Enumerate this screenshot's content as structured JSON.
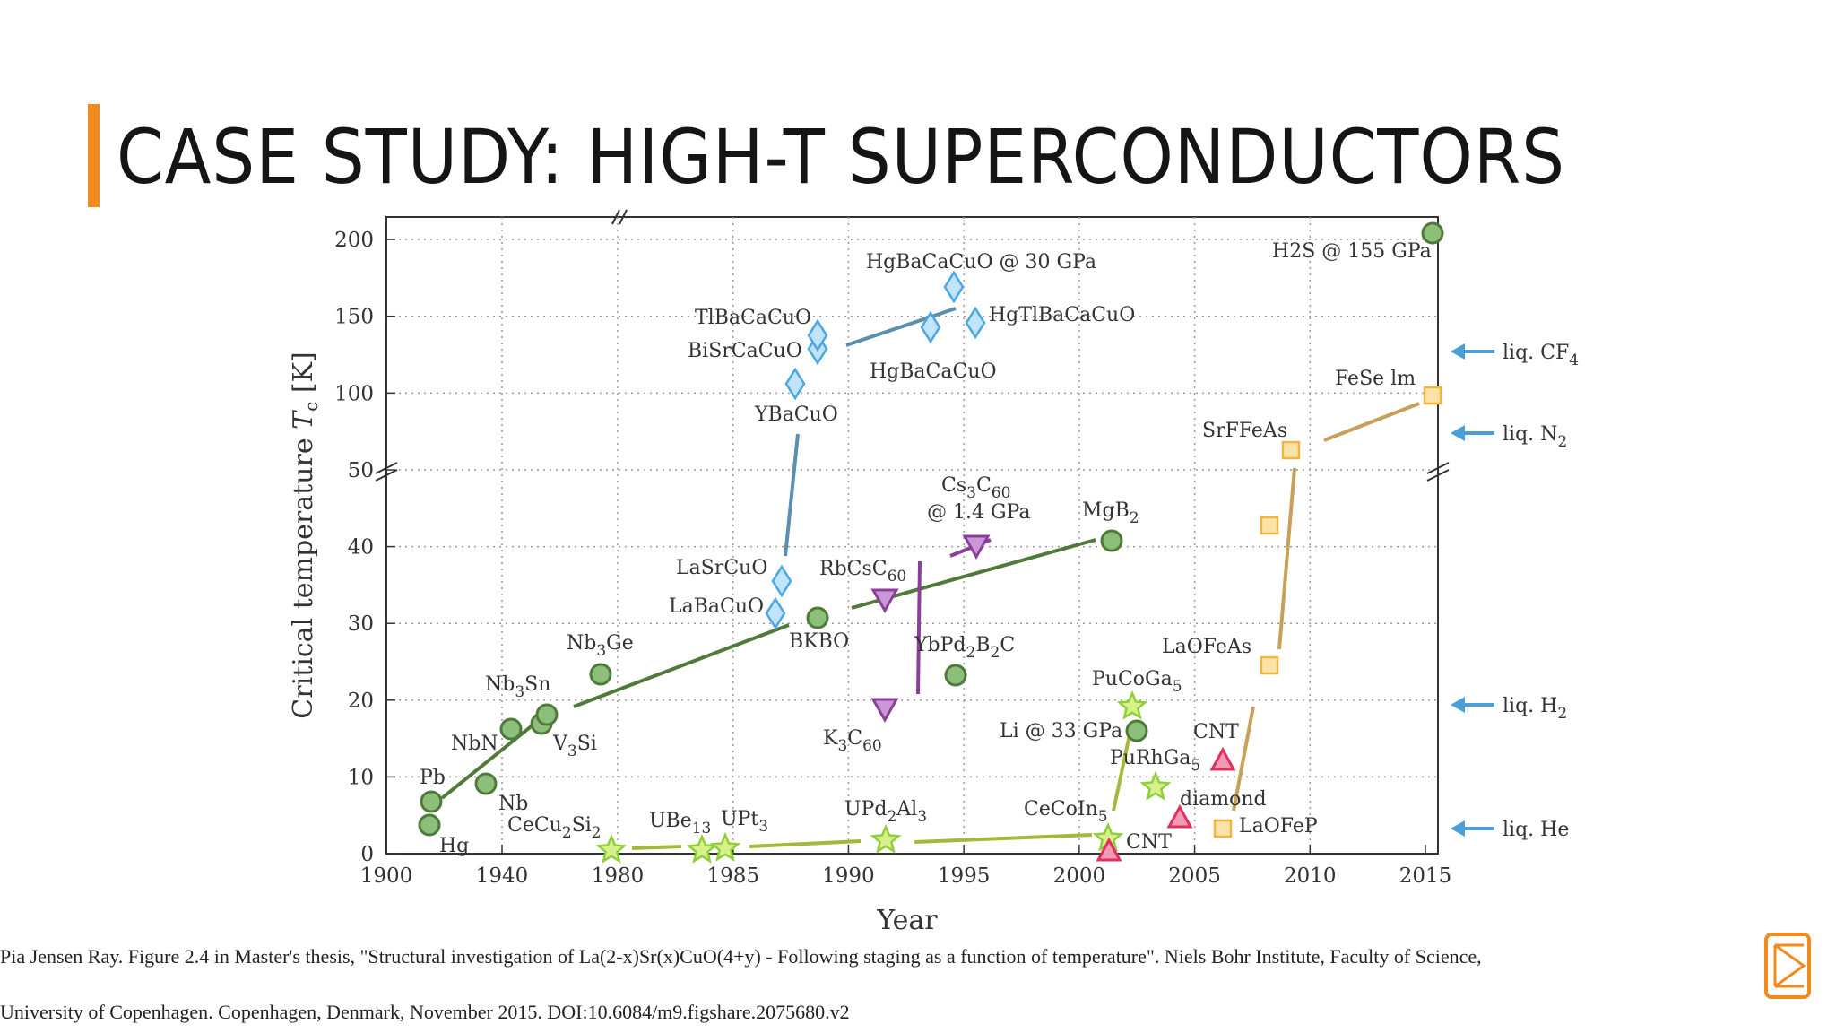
{
  "slide": {
    "title": "CASE STUDY: HIGH-T SUPERCONDUCTORS",
    "caption_line1": "Pia Jensen Ray. Figure 2.4 in Master's thesis, \"Structural investigation of La(2-x)Sr(x)CuO(4+y) - Following staging as a function of temperature\". Niels Bohr Institute, Faculty of Science,",
    "caption_line2": "University of Copenhagen. Copenhagen, Denmark, November 2015. DOI:10.6084/m9.figshare.2075680.v2",
    "accent_color": "#f28a1d",
    "logo_icon": "framed-book-logo-icon"
  },
  "chart_data": {
    "type": "scatter",
    "xlabel": "Year",
    "ylabel": "Critical temperature T_c [K]",
    "x_ticks": [
      "1900",
      "1940",
      "1980",
      "1985",
      "1990",
      "1995",
      "2000",
      "2005",
      "2010",
      "2015"
    ],
    "y_ticks": [
      "0",
      "10",
      "20",
      "30",
      "40",
      "50",
      "100",
      "150",
      "200"
    ],
    "x_axis_note": "broken axis between 1940 and 1980; 1900-1980 compressed",
    "y_axis_note": "broken axis at 50 K; 50-200 K compressed",
    "grid": true,
    "colors": {
      "conventional": "#4f7a3a",
      "cuprates": "#5b8fb0",
      "fullerenes": "#8b3f9a",
      "heavy_fermion": "#a6b83a",
      "carbon": "#e0305c",
      "iron": "#c8a05a",
      "arrows": "#4a9fd8"
    },
    "series": [
      {
        "key": "conventional",
        "points": [
          {
            "x": 1911,
            "y": 4.2,
            "label": "Hg"
          },
          {
            "x": 1913,
            "y": 7.2,
            "label": "Pb"
          },
          {
            "x": 1930,
            "y": 9.2,
            "label": "Nb"
          },
          {
            "x": 1941,
            "y": 16.1,
            "label": "NbN"
          },
          {
            "x": 1953,
            "y": 17.1,
            "label": "V3Si"
          },
          {
            "x": 1954,
            "y": 18.3,
            "label": "Nb3Sn"
          },
          {
            "x": 1973,
            "y": 23.2,
            "label": "Nb3Ge"
          },
          {
            "x": 1988,
            "y": 30.0,
            "label": "BKBO"
          },
          {
            "x": 2001,
            "y": 39.0,
            "label": "MgB2"
          },
          {
            "x": 1994,
            "y": 23.0,
            "label": "YbPd2B2C"
          },
          {
            "x": 2002,
            "y": 16.0,
            "label": "Li @ 33 GPa"
          },
          {
            "x": 2015,
            "y": 203,
            "label": "H2S @ 155 GPa"
          }
        ]
      },
      {
        "key": "cuprates",
        "points": [
          {
            "x": 1986,
            "y": 30,
            "label": "LaBaCuO"
          },
          {
            "x": 1986.5,
            "y": 35,
            "label": "LaSrCuO"
          },
          {
            "x": 1987,
            "y": 93,
            "label": "YBaCuO"
          },
          {
            "x": 1988,
            "y": 110,
            "label": "BiSrCaCuO"
          },
          {
            "x": 1988,
            "y": 125,
            "label": "TlBaCaCuO"
          },
          {
            "x": 1993,
            "y": 133,
            "label": "HgBaCaCuO"
          },
          {
            "x": 1993.5,
            "y": 164,
            "label": "HgBaCaCuO @ 30 GPa"
          },
          {
            "x": 1995,
            "y": 138,
            "label": "HgTlBaCaCuO"
          }
        ]
      },
      {
        "key": "fullerenes",
        "points": [
          {
            "x": 1991,
            "y": 18,
            "label": "K3C60"
          },
          {
            "x": 1991,
            "y": 33,
            "label": "RbCsC60"
          },
          {
            "x": 1995,
            "y": 38,
            "label": "Cs3C60 @ 1.4 GPa"
          }
        ]
      },
      {
        "key": "heavy_fermion",
        "points": [
          {
            "x": 1979,
            "y": 0.6,
            "label": "CeCu2Si2"
          },
          {
            "x": 1983,
            "y": 0.9,
            "label": "UBe13"
          },
          {
            "x": 1984,
            "y": 0.5,
            "label": "UPt3"
          },
          {
            "x": 1991,
            "y": 2.0,
            "label": "UPd2Al3"
          },
          {
            "x": 2001,
            "y": 2.3,
            "label": "CeCoIn5"
          },
          {
            "x": 2002,
            "y": 18.5,
            "label": "PuCoGa5"
          },
          {
            "x": 2003,
            "y": 8.7,
            "label": "PuRhGa5"
          }
        ]
      },
      {
        "key": "carbon",
        "points": [
          {
            "x": 2001,
            "y": 0.5,
            "label": "CNT"
          },
          {
            "x": 2004,
            "y": 4.0,
            "label": "diamond"
          },
          {
            "x": 2006,
            "y": 12,
            "label": "CNT"
          }
        ]
      },
      {
        "key": "iron",
        "points": [
          {
            "x": 2006,
            "y": 4.0,
            "label": "LaOFeP"
          },
          {
            "x": 2008,
            "y": 26,
            "label": "LaOFeAs"
          },
          {
            "x": 2008,
            "y": 43,
            "label": ""
          },
          {
            "x": 2008.5,
            "y": 55,
            "label": "SrFFeAs"
          },
          {
            "x": 2015,
            "y": 100,
            "label": "FeSe lm"
          }
        ]
      }
    ],
    "reference_lines": [
      {
        "label": "liq. CF4",
        "y": 145
      },
      {
        "label": "liq. N2",
        "y": 77
      },
      {
        "label": "liq. H2",
        "y": 20
      },
      {
        "label": "liq. He",
        "y": 4.2
      }
    ]
  }
}
